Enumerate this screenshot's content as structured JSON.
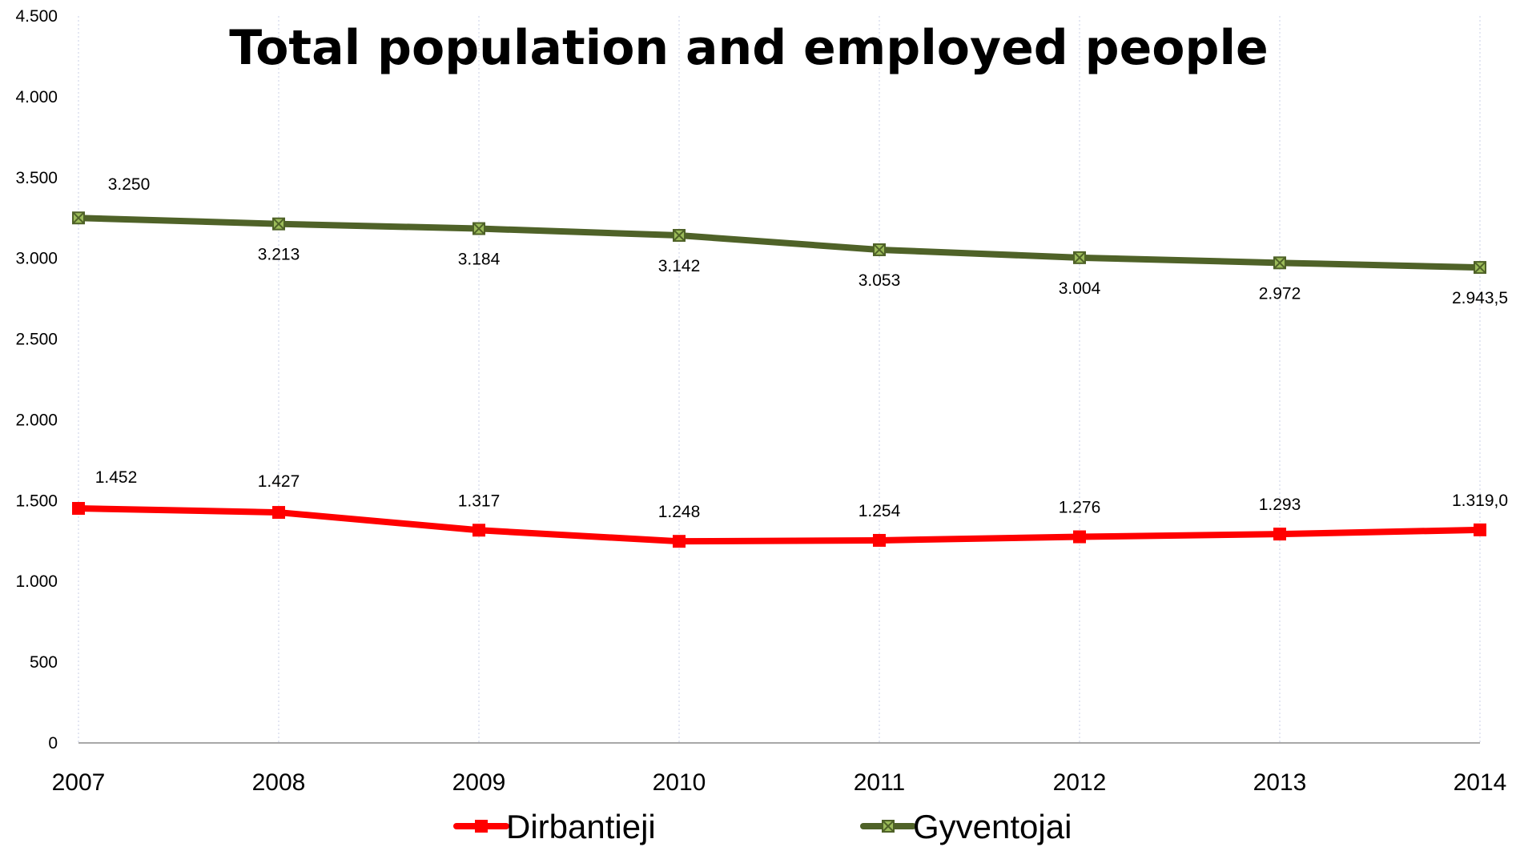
{
  "chart_data": {
    "type": "line",
    "title": "Total population and employed people",
    "xlabel": "",
    "ylabel": "",
    "ylim": [
      0,
      4500
    ],
    "yticks": [
      0,
      500,
      1000,
      1500,
      2000,
      2500,
      3000,
      3500,
      4000,
      4500
    ],
    "ytick_labels": [
      "0",
      "500",
      "1.000",
      "1.500",
      "2.000",
      "2.500",
      "3.000",
      "3.500",
      "4.000",
      "4.500"
    ],
    "categories": [
      "2007",
      "2008",
      "2009",
      "2010",
      "2011",
      "2012",
      "2013",
      "2014"
    ],
    "grid": "vertical dotted",
    "legend_position": "bottom",
    "series": [
      {
        "name": "Dirbantieji",
        "color": "#ff0000",
        "marker": "square-x",
        "values": [
          1452,
          1427,
          1317,
          1248,
          1254,
          1276,
          1293,
          1319.0
        ],
        "labels": [
          "1.452",
          "1.427",
          "1.317",
          "1.248",
          "1.254",
          "1.276",
          "1.293",
          "1.319,0"
        ]
      },
      {
        "name": "Gyventojai",
        "color": "#4f6228",
        "marker": "square-x",
        "marker_fill": "#9bbb59",
        "values": [
          3250,
          3213,
          3184,
          3142,
          3053,
          3004,
          2972,
          2943.5
        ],
        "labels": [
          "3.250",
          "3.213",
          "3.184",
          "3.142",
          "3.053",
          "3.004",
          "2.972",
          "2.943,5"
        ]
      }
    ]
  }
}
